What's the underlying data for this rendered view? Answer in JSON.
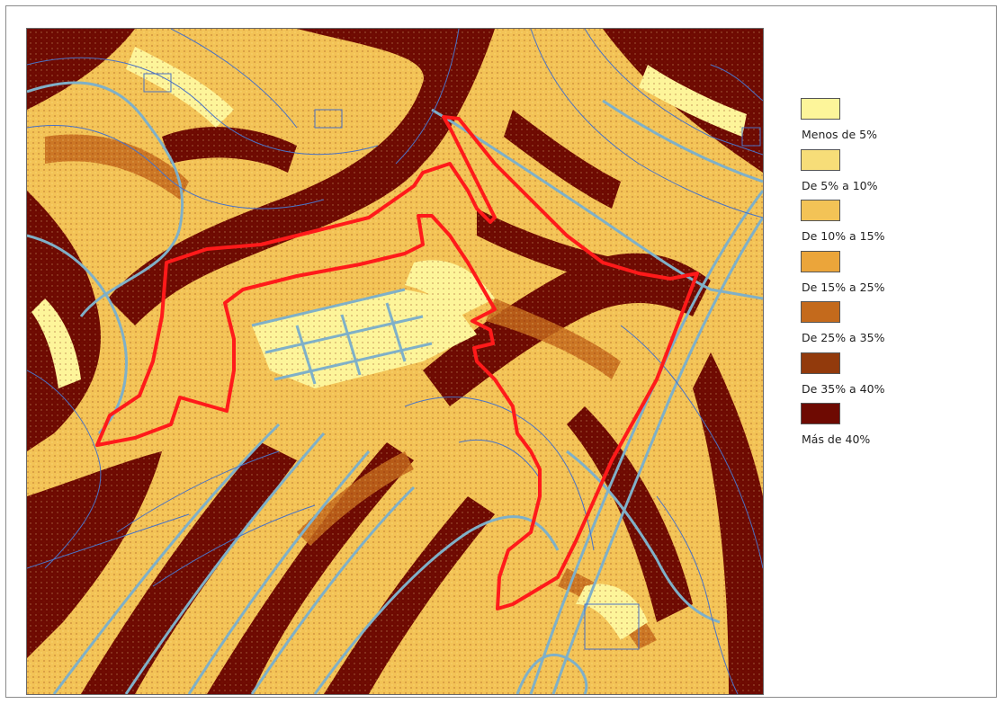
{
  "legend": {
    "items": [
      {
        "label": "Menos de 5%",
        "color": "#fdf59a"
      },
      {
        "label": "De 5% a 10%",
        "color": "#f7dd78"
      },
      {
        "label": "De 10% a 15%",
        "color": "#f3c356"
      },
      {
        "label": "De 15% a 25%",
        "color": "#eba53a"
      },
      {
        "label": "De 25% a 35%",
        "color": "#c46a1c"
      },
      {
        "label": "De 35% a 40%",
        "color": "#923a0c"
      },
      {
        "label": "Más de 40%",
        "color": "#6e0a02"
      }
    ]
  },
  "colors": {
    "boundary": "#ff1a1a",
    "contour": "#4a72c4",
    "road": "#7fb0c8"
  }
}
